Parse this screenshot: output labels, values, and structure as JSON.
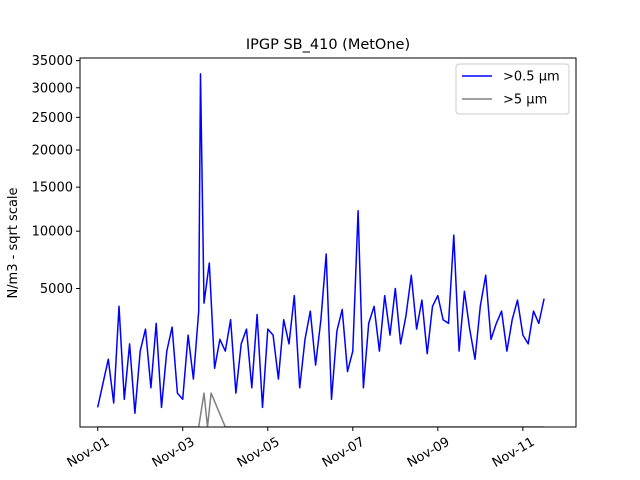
{
  "chart_data": {
    "type": "line",
    "title": "IPGP SB_410 (MetOne)",
    "xlabel": "",
    "ylabel": "N/m3 - sqrt scale",
    "y_scale": "sqrt",
    "ylim": [
      0,
      35500
    ],
    "xlim": [
      "2023-10-31T14:00",
      "2023-11-12T06:00"
    ],
    "yticks": [
      5000,
      10000,
      15000,
      20000,
      25000,
      30000,
      35000
    ],
    "ytick_labels": [
      "5000",
      "10000",
      "15000",
      "20000",
      "25000",
      "30000",
      "35000"
    ],
    "xticks": [
      "2023-11-01",
      "2023-11-03",
      "2023-11-05",
      "2023-11-07",
      "2023-11-09",
      "2023-11-11"
    ],
    "xtick_labels": [
      "Nov-01",
      "Nov-03",
      "Nov-05",
      "Nov-07",
      "Nov-09",
      "Nov-11"
    ],
    "grid": false,
    "legend_position": "top-right",
    "series": [
      {
        "name": ">0.5 µm",
        "color": "#0000ff",
        "x": [
          "2023-11-01T00:00",
          "2023-11-01T03:00",
          "2023-11-01T06:00",
          "2023-11-01T09:00",
          "2023-11-01T12:00",
          "2023-11-01T15:00",
          "2023-11-01T18:00",
          "2023-11-01T21:00",
          "2023-11-02T00:00",
          "2023-11-02T03:00",
          "2023-11-02T06:00",
          "2023-11-02T09:00",
          "2023-11-02T12:00",
          "2023-11-02T15:00",
          "2023-11-02T18:00",
          "2023-11-02T21:00",
          "2023-11-03T00:00",
          "2023-11-03T03:00",
          "2023-11-03T06:00",
          "2023-11-03T09:00",
          "2023-11-03T10:00",
          "2023-11-03T12:00",
          "2023-11-03T15:00",
          "2023-11-03T18:00",
          "2023-11-03T21:00",
          "2023-11-04T00:00",
          "2023-11-04T03:00",
          "2023-11-04T06:00",
          "2023-11-04T09:00",
          "2023-11-04T12:00",
          "2023-11-04T15:00",
          "2023-11-04T18:00",
          "2023-11-04T21:00",
          "2023-11-05T00:00",
          "2023-11-05T03:00",
          "2023-11-05T06:00",
          "2023-11-05T09:00",
          "2023-11-05T12:00",
          "2023-11-05T15:00",
          "2023-11-05T18:00",
          "2023-11-05T21:00",
          "2023-11-06T00:00",
          "2023-11-06T03:00",
          "2023-11-06T06:00",
          "2023-11-06T09:00",
          "2023-11-06T12:00",
          "2023-11-06T15:00",
          "2023-11-06T18:00",
          "2023-11-06T21:00",
          "2023-11-07T00:00",
          "2023-11-07T03:00",
          "2023-11-07T06:00",
          "2023-11-07T09:00",
          "2023-11-07T12:00",
          "2023-11-07T15:00",
          "2023-11-07T18:00",
          "2023-11-07T21:00",
          "2023-11-08T00:00",
          "2023-11-08T03:00",
          "2023-11-08T06:00",
          "2023-11-08T09:00",
          "2023-11-08T12:00",
          "2023-11-08T15:00",
          "2023-11-08T18:00",
          "2023-11-08T21:00",
          "2023-11-09T00:00",
          "2023-11-09T03:00",
          "2023-11-09T06:00",
          "2023-11-09T09:00",
          "2023-11-09T12:00",
          "2023-11-09T15:00",
          "2023-11-09T18:00",
          "2023-11-09T21:00",
          "2023-11-10T00:00",
          "2023-11-10T03:00",
          "2023-11-10T06:00",
          "2023-11-10T09:00",
          "2023-11-10T12:00",
          "2023-11-10T15:00",
          "2023-11-10T18:00",
          "2023-11-10T21:00",
          "2023-11-11T00:00",
          "2023-11-11T03:00",
          "2023-11-11T06:00",
          "2023-11-11T09:00",
          "2023-11-11T12:00"
        ],
        "values": [
          100,
          500,
          1200,
          150,
          3800,
          200,
          1800,
          50,
          1500,
          2500,
          400,
          2800,
          100,
          1500,
          2600,
          300,
          200,
          2200,
          600,
          3500,
          32500,
          4000,
          7000,
          900,
          2000,
          1500,
          3000,
          300,
          1800,
          2500,
          400,
          3300,
          100,
          2500,
          2200,
          600,
          3000,
          1800,
          4500,
          400,
          2000,
          3500,
          1000,
          3000,
          7800,
          200,
          2400,
          3600,
          800,
          1500,
          12200,
          400,
          2800,
          3800,
          1500,
          4500,
          2200,
          5000,
          1800,
          3200,
          6000,
          2500,
          4200,
          1400,
          3800,
          4500,
          3000,
          2800,
          9600,
          1500,
          4800,
          2500,
          1200,
          3800,
          6000,
          2000,
          2800,
          3500,
          1500,
          3000,
          4200,
          2200,
          1800,
          3500,
          2800,
          4300
        ]
      },
      {
        "name": ">5 µm",
        "color": "#808080",
        "x": [
          "2023-11-01T00:00",
          "2023-11-03T09:00",
          "2023-11-03T12:00",
          "2023-11-03T14:00",
          "2023-11-03T16:00",
          "2023-11-04T00:00",
          "2023-11-11T12:00"
        ],
        "values": [
          0,
          0,
          300,
          0,
          300,
          0,
          0
        ]
      }
    ]
  }
}
